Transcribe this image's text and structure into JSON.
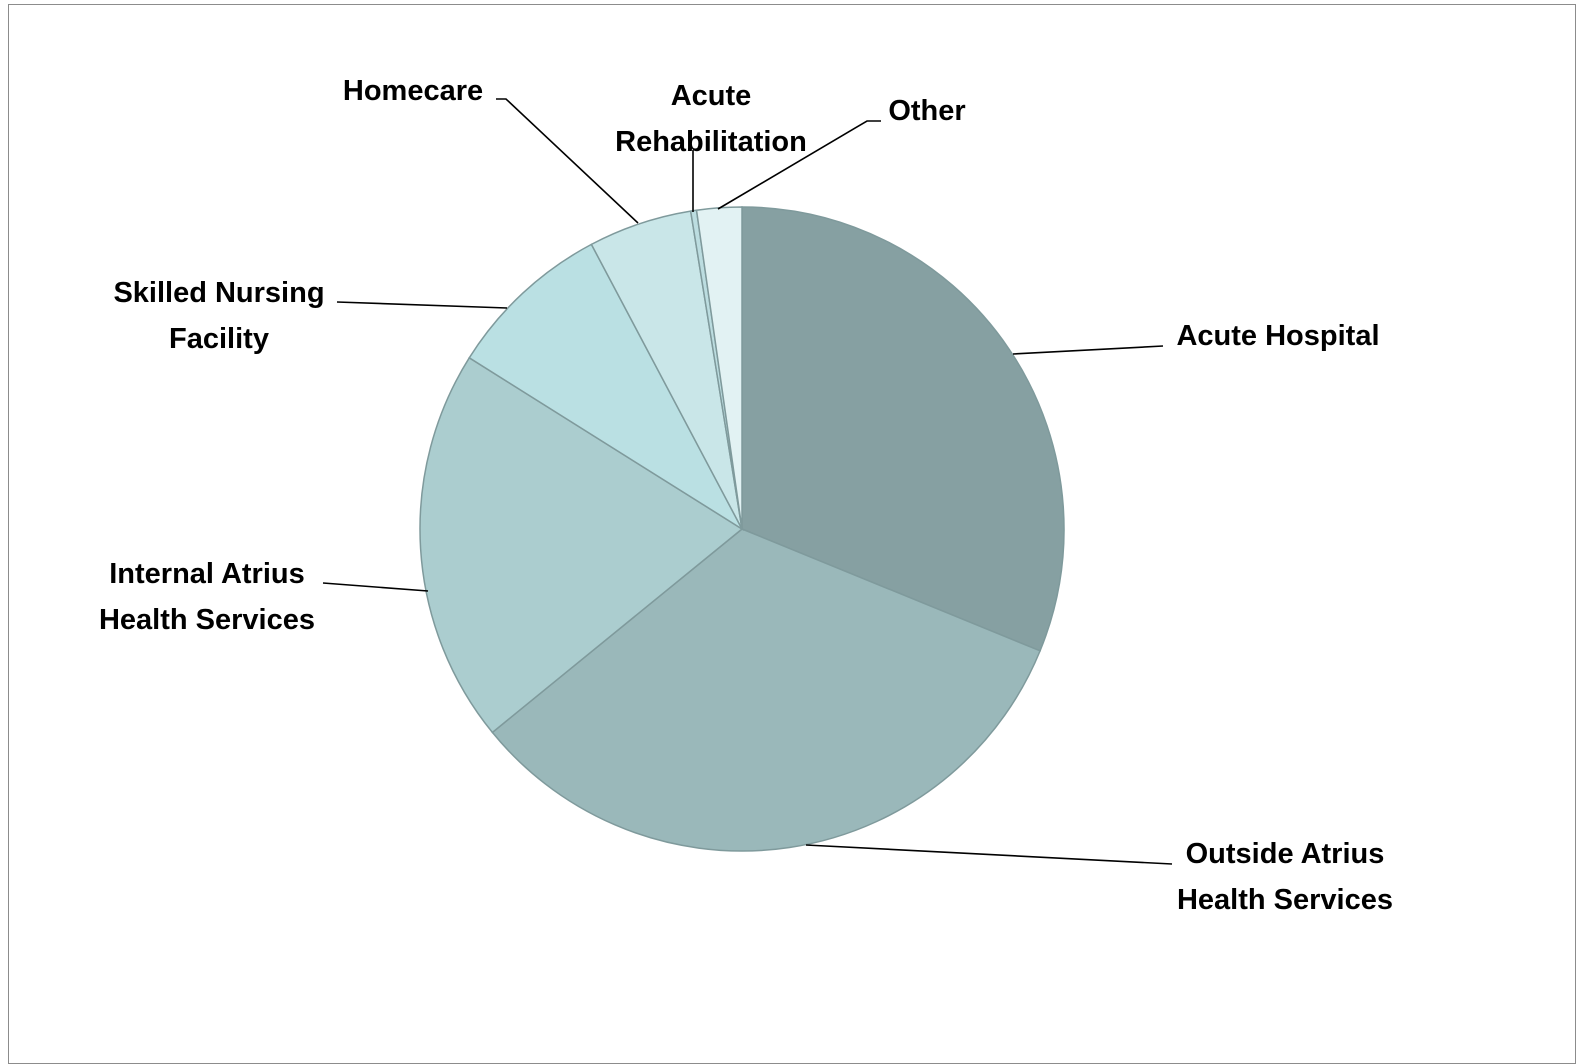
{
  "chart_data": {
    "type": "pie",
    "title": "",
    "start_angle": "12 o'clock",
    "direction": "clockwise",
    "legend": "none",
    "slices": [
      {
        "name": "Acute Hospital",
        "value": 31.8,
        "color": "#86a0a2"
      },
      {
        "name": "Outside Atrius Health Services",
        "value": 33.6,
        "color": "#9ab8ba"
      },
      {
        "name": "Internal Atrius Health Services",
        "value": 20.2,
        "color": "#abcdcf"
      },
      {
        "name": "Skilled Nursing Facility",
        "value": 8.5,
        "color": "#bae0e3"
      },
      {
        "name": "Homecare",
        "value": 5.3,
        "color": "#c9e6e8"
      },
      {
        "name": "Acute Rehabilitation",
        "value": 0.3,
        "color": "#bcdde0"
      },
      {
        "name": "Other",
        "value": 2.3,
        "color": "#e2f2f3"
      }
    ],
    "labels": [
      {
        "name": "acute-hospital",
        "lines": [
          "Acute Hospital"
        ]
      },
      {
        "name": "outside-atrius",
        "lines": [
          "Outside Atrius",
          "Health Services"
        ]
      },
      {
        "name": "internal-atrius",
        "lines": [
          "Internal Atrius",
          "Health Services"
        ]
      },
      {
        "name": "skilled-nursing",
        "lines": [
          "Skilled Nursing",
          "Facility"
        ]
      },
      {
        "name": "homecare",
        "lines": [
          "Homecare"
        ]
      },
      {
        "name": "acute-rehab",
        "lines": [
          "Acute",
          "Rehabilitation"
        ]
      },
      {
        "name": "other",
        "lines": [
          "Other"
        ]
      }
    ]
  }
}
